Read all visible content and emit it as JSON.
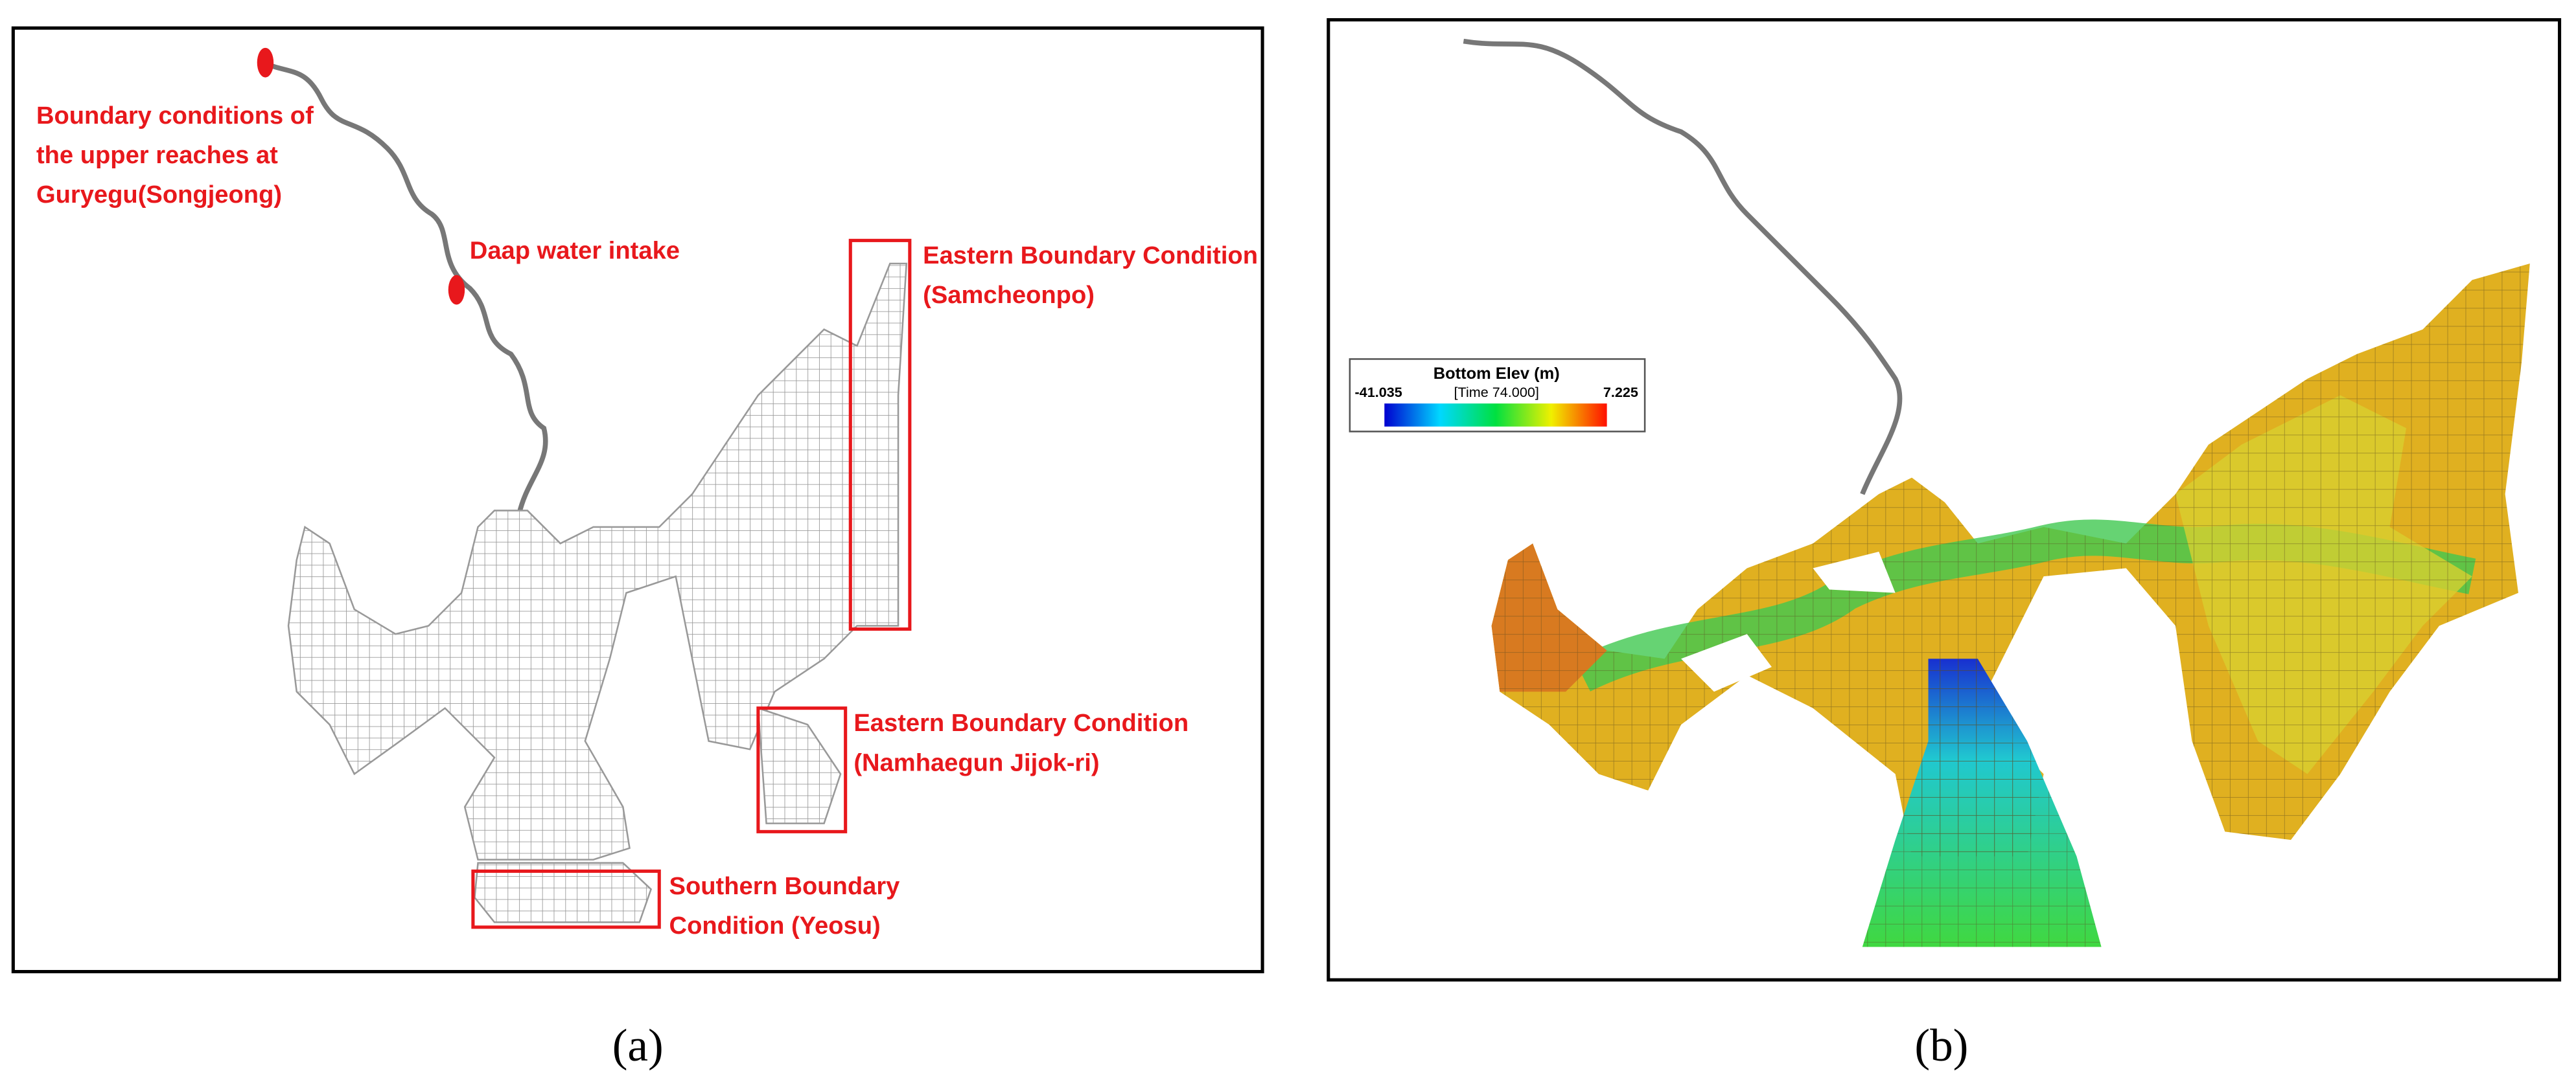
{
  "panels": [
    {
      "annotations": [
        {
          "lines": [
            "Boundary conditions of",
            "the upper reaches at",
            "Guryegu(Songjeong)"
          ]
        },
        {
          "lines": [
            "Daap water intake"
          ]
        },
        {
          "lines": [
            "Eastern Boundary Condition",
            "(Samcheonpo)"
          ]
        },
        {
          "lines": [
            "Eastern Boundary Condition",
            "(Namhaegun Jijok-ri)"
          ]
        },
        {
          "lines": [
            "Southern Boundary",
            "Condition (Yeosu)"
          ]
        }
      ],
      "caption": "(a)"
    },
    {
      "legend": {
        "title": "Bottom Elev (m)",
        "min": -41.035,
        "time": "[Time 74.000]",
        "max": 7.225
      },
      "caption": "(b)"
    }
  ]
}
